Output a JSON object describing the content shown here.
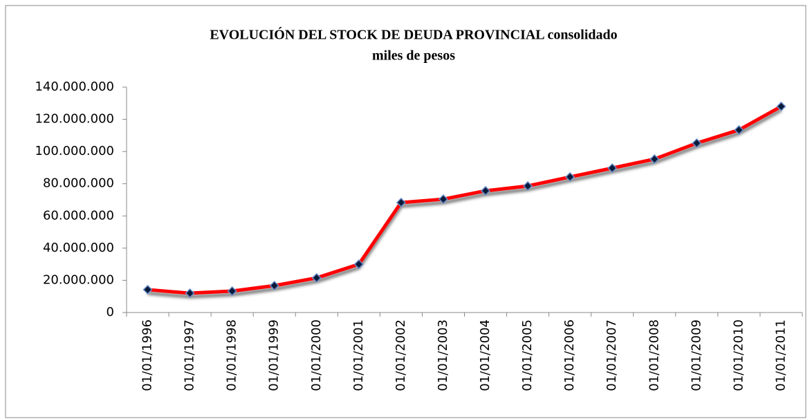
{
  "chart_data": {
    "type": "line",
    "title": "EVOLUCIÓN DEL STOCK DE DEUDA PROVINCIAL consolidado",
    "subtitle": "miles de pesos",
    "categories": [
      "01/01/1996",
      "01/01/1997",
      "01/01/1998",
      "01/01/1999",
      "01/01/2000",
      "01/01/2001",
      "01/01/2002",
      "01/01/2003",
      "01/01/2004",
      "01/01/2005",
      "01/01/2006",
      "01/01/2007",
      "01/01/2008",
      "01/01/2009",
      "01/01/2010",
      "01/01/2011"
    ],
    "series": [
      {
        "color": "#ff0000",
        "values": [
          14200000,
          12000000,
          13300000,
          16700000,
          21500000,
          30000000,
          68300000,
          70400000,
          75600000,
          78600000,
          84200000,
          89700000,
          95300000,
          105200000,
          113400000,
          128000000
        ]
      }
    ],
    "ylim": [
      0,
      140000000
    ],
    "yticks": [
      0,
      {
        "value": 20000000,
        "label": "20.000.000"
      },
      {
        "value": 40000000,
        "label": "40.000.000"
      },
      {
        "value": 60000000,
        "label": "60.000.000"
      },
      {
        "value": 80000000,
        "label": "80.000.000"
      },
      {
        "value": 100000000,
        "label": "100.000.000"
      },
      {
        "value": 120000000,
        "label": "120.000.000"
      },
      {
        "value": 140000000,
        "label": "140.000.000"
      }
    ],
    "grid": false,
    "marker_color": "#0a1a3a"
  }
}
